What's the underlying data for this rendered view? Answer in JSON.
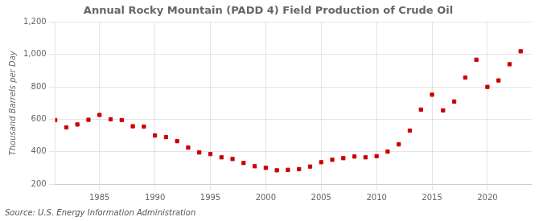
{
  "chart_data": {
    "type": "scatter",
    "title": "Annual Rocky Mountain (PADD 4) Field Production of Crude Oil",
    "ylabel": "Thousand Barrels per Day",
    "annotations": [
      "Source: U.S. Energy Information Administration"
    ],
    "x": [
      1981,
      1982,
      1983,
      1984,
      1985,
      1986,
      1987,
      1988,
      1989,
      1990,
      1991,
      1992,
      1993,
      1994,
      1995,
      1996,
      1997,
      1998,
      1999,
      2000,
      2001,
      2002,
      2003,
      2004,
      2005,
      2006,
      2007,
      2008,
      2009,
      2010,
      2011,
      2012,
      2013,
      2014,
      2015,
      2016,
      2017,
      2018,
      2019,
      2020,
      2021,
      2022,
      2023
    ],
    "values": [
      595,
      550,
      568,
      597,
      627,
      600,
      595,
      557,
      555,
      500,
      490,
      465,
      425,
      395,
      385,
      365,
      355,
      330,
      310,
      300,
      285,
      288,
      292,
      308,
      335,
      350,
      360,
      370,
      365,
      372,
      400,
      445,
      530,
      660,
      752,
      655,
      710,
      858,
      968,
      800,
      840,
      940,
      1020
    ],
    "color": "#cc0000",
    "marker": "square",
    "xlim": [
      1981,
      2024
    ],
    "xticks": [
      1985,
      1990,
      1995,
      2000,
      2005,
      2010,
      2015,
      2020
    ],
    "ylim": [
      200,
      1200
    ],
    "yticks": [
      200,
      400,
      600,
      800,
      {
        "value": 1000,
        "label": "1,000"
      },
      {
        "value": 1200,
        "label": "1,200"
      }
    ],
    "grid": true
  }
}
